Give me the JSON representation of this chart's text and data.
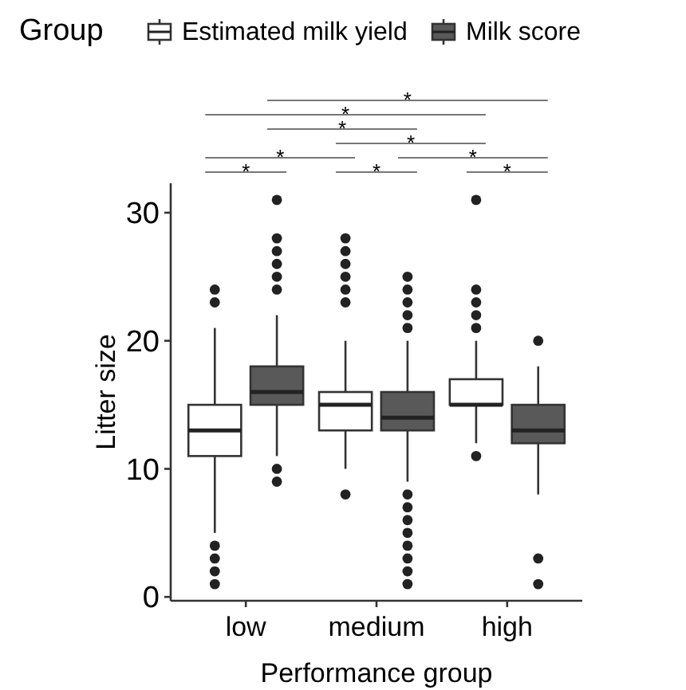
{
  "chart_data": {
    "type": "box",
    "xlabel": "Performance group",
    "ylabel": "Litter size",
    "legend_title": "Group",
    "legend": "top",
    "categories": [
      "low",
      "medium",
      "high"
    ],
    "ylim": [
      -0.3,
      32.3
    ],
    "yticks": [
      0,
      10,
      20,
      30
    ],
    "grid": false,
    "series": [
      {
        "name": "Estimated milk yield",
        "color": "#ffffff",
        "boxes": [
          {
            "low": 5,
            "q1": 11,
            "median": 13,
            "q3": 15,
            "high": 21,
            "outliers": [
              23,
              24,
              4,
              3,
              2,
              1
            ]
          },
          {
            "low": 10,
            "q1": 13,
            "median": 15,
            "q3": 16,
            "high": 20,
            "outliers": [
              23,
              24,
              25,
              26,
              27,
              28,
              8
            ]
          },
          {
            "low": 12,
            "q1": 15,
            "median": 15,
            "q3": 17,
            "high": 20,
            "outliers": [
              21,
              22,
              23,
              24,
              31,
              11
            ]
          }
        ]
      },
      {
        "name": "Milk score",
        "color": "#595959",
        "boxes": [
          {
            "low": 11,
            "q1": 15,
            "median": 16,
            "q3": 18,
            "high": 22,
            "outliers": [
              24,
              25,
              26,
              27,
              28,
              31,
              10,
              9
            ]
          },
          {
            "low": 9,
            "q1": 13,
            "median": 14,
            "q3": 16,
            "high": 20,
            "outliers": [
              21,
              22,
              23,
              24,
              25,
              8,
              7,
              6,
              5,
              4,
              3,
              2,
              1
            ]
          },
          {
            "low": 8,
            "q1": 12,
            "median": 13,
            "q3": 15,
            "high": 18,
            "outliers": [
              20,
              3,
              1
            ]
          }
        ]
      }
    ],
    "annotations": [
      "*",
      "*",
      "*",
      "*",
      "*",
      "*",
      "*",
      "*",
      "*"
    ]
  }
}
